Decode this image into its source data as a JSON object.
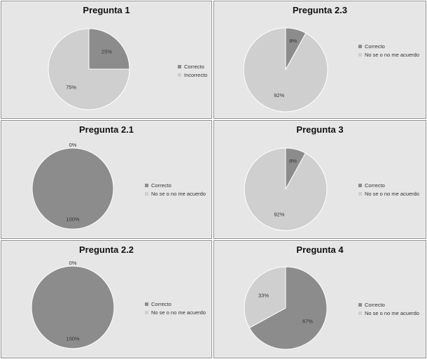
{
  "chart_data": [
    {
      "type": "pie",
      "title": "Pregunta 1",
      "labels": [
        "Correcto",
        "Incorrecto"
      ],
      "values": [
        25,
        75
      ],
      "data_labels": [
        "25%",
        "75%"
      ],
      "colors": [
        "#8c8c8c",
        "#cfcfcf"
      ],
      "legend": "right"
    },
    {
      "type": "pie",
      "title": "Pregunta 2.3",
      "labels": [
        "Correcto",
        "No se o no me acuerdo"
      ],
      "values": [
        8,
        92
      ],
      "data_labels": [
        "8%",
        "92%"
      ],
      "colors": [
        "#8c8c8c",
        "#cfcfcf"
      ],
      "legend": "right"
    },
    {
      "type": "pie",
      "title": "Pregunta 2.1",
      "labels": [
        "Correcto",
        "No se o no me acuerdo"
      ],
      "values": [
        100,
        0
      ],
      "data_labels": [
        "100%",
        "0%"
      ],
      "colors": [
        "#8c8c8c",
        "#cfcfcf"
      ],
      "legend": "right"
    },
    {
      "type": "pie",
      "title": "Pregunta 3",
      "labels": [
        "Correcto",
        "No se o no me acuerdo"
      ],
      "values": [
        8,
        92
      ],
      "data_labels": [
        "8%",
        "92%"
      ],
      "colors": [
        "#8c8c8c",
        "#cfcfcf"
      ],
      "legend": "right"
    },
    {
      "type": "pie",
      "title": "Pregunta 2.2",
      "labels": [
        "Correcto",
        "No se o no me acuerdo"
      ],
      "values": [
        100,
        0
      ],
      "data_labels": [
        "100%",
        "0%"
      ],
      "colors": [
        "#8c8c8c",
        "#cfcfcf"
      ],
      "legend": "right"
    },
    {
      "type": "pie",
      "title": "Pregunta 4",
      "labels": [
        "Correcto",
        "No se o no me acuerdo"
      ],
      "values": [
        67,
        33
      ],
      "data_labels": [
        "67%",
        "33%"
      ],
      "colors": [
        "#8c8c8c",
        "#cfcfcf"
      ],
      "legend": "right"
    }
  ]
}
